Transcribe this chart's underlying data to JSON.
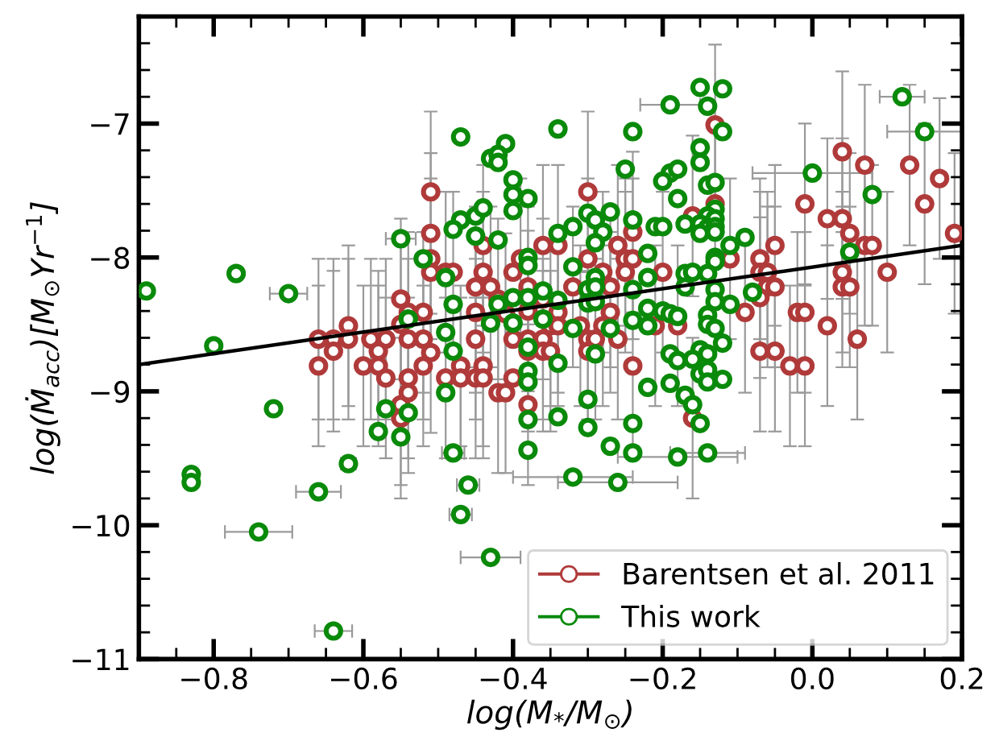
{
  "chart_data": {
    "type": "scatter",
    "xlabel": "log(M$_{*}$/M$_{⊙}$)",
    "ylabel": "log(Ṁ$_{acc}$)[M$_{⊙}$Yr$^{−1}$]",
    "xlim": [
      -0.9,
      0.2
    ],
    "ylim": [
      -11,
      -6.2
    ],
    "xticks": [
      {
        "value": -0.8,
        "label": "−0.8"
      },
      {
        "value": -0.6,
        "label": "−0.6"
      },
      {
        "value": -0.4,
        "label": "−0.4"
      },
      {
        "value": -0.2,
        "label": "−0.2"
      },
      {
        "value": 0.0,
        "label": "0.0"
      },
      {
        "value": 0.2,
        "label": "0.2"
      }
    ],
    "yticks": [
      {
        "value": -11,
        "label": "−11"
      },
      {
        "value": -10,
        "label": "−10"
      },
      {
        "value": -9,
        "label": "−9"
      },
      {
        "value": -8,
        "label": "−8"
      },
      {
        "value": -7,
        "label": "−7"
      }
    ],
    "legend": "bottom right",
    "series": [
      {
        "name": "Barentsen et al. 2011",
        "marker": "circle",
        "color": "#b03a3a",
        "x": [
          -0.55,
          -0.55,
          -0.62,
          -0.66,
          -0.64,
          -0.62,
          -0.59,
          -0.57,
          -0.64,
          -0.58,
          -0.66,
          -0.6,
          -0.58,
          -0.57,
          -0.55,
          -0.55,
          -0.51,
          -0.3,
          -0.51,
          -0.24,
          -0.44,
          -0.36,
          -0.34,
          -0.26,
          -0.51,
          -0.39,
          -0.3,
          -0.25,
          -0.24,
          -0.51,
          -0.49,
          -0.48,
          -0.44,
          -0.4,
          -0.25,
          -0.2,
          -0.28,
          -0.45,
          -0.43,
          -0.38,
          -0.32,
          -0.27,
          -0.45,
          -0.42,
          -0.36,
          -0.38,
          -0.41,
          -0.34,
          -0.27,
          -0.54,
          -0.52,
          -0.35,
          -0.34,
          -0.31,
          -0.28,
          -0.21,
          -0.18,
          -0.54,
          -0.52,
          -0.45,
          -0.4,
          -0.36,
          -0.3,
          -0.29,
          -0.26,
          -0.38,
          -0.51,
          -0.38,
          -0.36,
          -0.35,
          -0.3,
          -0.52,
          -0.47,
          -0.44,
          -0.45,
          -0.44,
          -0.47,
          -0.49,
          -0.54,
          -0.4,
          -0.24,
          -0.54,
          -0.42,
          -0.41,
          -0.38,
          -0.16,
          -0.13,
          0.04,
          0.07,
          0.13,
          0.17,
          -0.01,
          0.15,
          0.02,
          0.04,
          0.05,
          0.19,
          0.07,
          0.08,
          -0.05,
          -0.13,
          -0.11,
          -0.07,
          -0.07,
          -0.06,
          0.04,
          0.1,
          -0.06,
          -0.05,
          0.04,
          0.05,
          -0.07,
          -0.09,
          -0.02,
          -0.01,
          0.02,
          0.06,
          -0.07,
          -0.05,
          -0.03,
          -0.01,
          -0.16
        ],
        "values": [
          -8.31,
          -8.5,
          -8.51,
          -8.61,
          -8.61,
          -8.61,
          -8.61,
          -8.61,
          -8.7,
          -8.7,
          -8.81,
          -8.81,
          -8.81,
          -8.9,
          -9.1,
          -9.2,
          -7.51,
          -7.51,
          -7.82,
          -7.81,
          -7.91,
          -7.91,
          -7.91,
          -7.91,
          -8.01,
          -8.01,
          -8.01,
          -8.01,
          -8.01,
          -8.11,
          -8.11,
          -8.11,
          -8.11,
          -8.11,
          -8.11,
          -8.11,
          -8.11,
          -8.22,
          -8.22,
          -8.22,
          -8.22,
          -8.22,
          -8.41,
          -8.31,
          -8.31,
          -8.4,
          -8.42,
          -8.41,
          -8.41,
          -8.41,
          -8.41,
          -8.51,
          -8.51,
          -8.51,
          -8.51,
          -8.51,
          -8.51,
          -8.61,
          -8.61,
          -8.61,
          -8.61,
          -8.61,
          -8.61,
          -8.61,
          -8.61,
          -8.61,
          -8.71,
          -8.7,
          -8.7,
          -8.7,
          -8.7,
          -8.81,
          -8.81,
          -8.81,
          -8.9,
          -8.9,
          -8.9,
          -8.9,
          -8.9,
          -8.9,
          -8.81,
          -9.01,
          -9.01,
          -9.01,
          -9.1,
          -9.2,
          -7.01,
          -7.21,
          -7.31,
          -7.31,
          -7.41,
          -7.6,
          -7.6,
          -7.71,
          -7.71,
          -7.82,
          -7.82,
          -7.91,
          -7.91,
          -7.91,
          -7.6,
          -8.01,
          -8.01,
          -8.11,
          -8.11,
          -8.11,
          -8.11,
          -8.22,
          -8.22,
          -8.22,
          -8.22,
          -8.3,
          -8.41,
          -8.41,
          -8.41,
          -8.51,
          -8.61,
          -8.7,
          -8.7,
          -8.81,
          -8.81,
          -7.69
        ],
        "errors": [
          0.6,
          0.6,
          0.6,
          0.6,
          0.6,
          0.6,
          0.6,
          0.6,
          0.6,
          0.6,
          0.6,
          0.6,
          0.6,
          0.6,
          0.6,
          0.6,
          0.6,
          0.6,
          0.6,
          0.6,
          0.6,
          0.6,
          0.6,
          0.6,
          0.6,
          0.6,
          0.6,
          0.6,
          0.6,
          null,
          0.6,
          0.6,
          0.6,
          null,
          0.6,
          0.6,
          0.6,
          0.6,
          0.6,
          0.6,
          0.6,
          0.6,
          0.6,
          0.6,
          0.6,
          0.6,
          0.6,
          0.6,
          0.6,
          0.6,
          0.6,
          0.6,
          0.6,
          0.6,
          0.6,
          0.6,
          0.6,
          0.6,
          0.6,
          0.6,
          null,
          0.6,
          0.6,
          0.6,
          0.6,
          0.6,
          0.6,
          0.6,
          0.6,
          0.6,
          0.6,
          0.6,
          0.6,
          0.6,
          0.6,
          0.6,
          0.6,
          0.6,
          0.6,
          null,
          0.6,
          0.6,
          0.6,
          0.6,
          0.6,
          0.6,
          0.6,
          0.6,
          0.6,
          0.6,
          0.6,
          0.6,
          0.6,
          0.6,
          0.6,
          0.6,
          0.6,
          0.6,
          0.6,
          0.6,
          0.6,
          0.6,
          0.6,
          0.6,
          0.6,
          0.6,
          0.6,
          0.6,
          0.6,
          0.6,
          0.6,
          0.6,
          0.6,
          0.6,
          0.6,
          0.6,
          0.6,
          0.6,
          0.6,
          0.6,
          0.6,
          0.6
        ]
      },
      {
        "name": "This work",
        "marker": "circle",
        "color": "#0a8a0a",
        "x": [
          -0.89,
          -0.77,
          -0.7,
          -0.8,
          -0.55,
          -0.72,
          -0.57,
          -0.58,
          -0.55,
          -0.62,
          -0.83,
          -0.83,
          -0.66,
          -0.74,
          -0.64,
          -0.19,
          -0.34,
          -0.24,
          -0.47,
          -0.41,
          -0.43,
          -0.42,
          -0.42,
          -0.25,
          -0.19,
          -0.18,
          -0.2,
          -0.4,
          -0.18,
          -0.4,
          -0.38,
          -0.4,
          -0.47,
          -0.45,
          -0.44,
          -0.48,
          -0.3,
          -0.29,
          -0.27,
          -0.24,
          -0.32,
          -0.21,
          -0.2,
          -0.17,
          -0.45,
          -0.34,
          -0.28,
          -0.42,
          -0.29,
          -0.22,
          -0.52,
          -0.38,
          -0.38,
          -0.49,
          -0.32,
          -0.29,
          -0.3,
          -0.29,
          -0.22,
          -0.24,
          -0.17,
          -0.17,
          -0.36,
          -0.42,
          -0.4,
          -0.38,
          -0.3,
          -0.29,
          -0.34,
          -0.48,
          -0.54,
          -0.22,
          -0.2,
          -0.19,
          -0.18,
          -0.24,
          -0.22,
          -0.43,
          -0.4,
          -0.36,
          -0.49,
          -0.32,
          -0.27,
          -0.48,
          -0.38,
          -0.29,
          -0.34,
          -0.38,
          -0.38,
          -0.49,
          -0.19,
          -0.18,
          -0.19,
          -0.22,
          -0.3,
          -0.17,
          -0.16,
          -0.54,
          -0.38,
          -0.34,
          -0.3,
          -0.24,
          -0.38,
          -0.48,
          -0.27,
          -0.24,
          -0.18,
          -0.46,
          -0.32,
          -0.26,
          -0.47,
          -0.43,
          -0.15,
          -0.12,
          -0.14,
          -0.12,
          -0.15,
          -0.15,
          -0.14,
          -0.13,
          0.12,
          0.15,
          0.0,
          0.08,
          -0.13,
          -0.14,
          -0.13,
          -0.15,
          -0.14,
          -0.13,
          -0.15,
          -0.13,
          -0.09,
          -0.11,
          -0.13,
          -0.13,
          -0.16,
          -0.14,
          -0.13,
          -0.08,
          -0.13,
          -0.11,
          0.05,
          -0.14,
          -0.14,
          -0.13,
          -0.12,
          -0.15,
          -0.14,
          -0.16,
          -0.15,
          -0.14,
          -0.14,
          -0.12,
          -0.15,
          -0.14
        ],
        "values": [
          -8.25,
          -8.12,
          -8.27,
          -8.66,
          -7.86,
          -9.13,
          -9.13,
          -9.3,
          -9.34,
          -9.54,
          -9.62,
          -9.68,
          -9.75,
          -10.05,
          -10.79,
          -6.86,
          -7.04,
          -7.06,
          -7.1,
          -7.15,
          -7.26,
          -7.23,
          -7.29,
          -7.34,
          -7.37,
          -7.34,
          -7.43,
          -7.42,
          -7.56,
          -7.53,
          -7.56,
          -7.65,
          -7.72,
          -7.69,
          -7.63,
          -7.79,
          -7.67,
          -7.72,
          -7.66,
          -7.72,
          -7.77,
          -7.77,
          -7.77,
          -7.75,
          -7.84,
          -7.82,
          -7.81,
          -7.87,
          -7.89,
          -7.97,
          -8.01,
          -8.0,
          -8.06,
          -8.15,
          -8.07,
          -8.15,
          -8.24,
          -8.22,
          -8.15,
          -8.24,
          -8.12,
          -8.22,
          -8.25,
          -8.35,
          -8.3,
          -8.3,
          -8.34,
          -8.33,
          -8.32,
          -8.35,
          -8.46,
          -8.38,
          -8.4,
          -8.42,
          -8.44,
          -8.47,
          -8.51,
          -8.49,
          -8.49,
          -8.46,
          -8.56,
          -8.53,
          -8.53,
          -8.7,
          -8.67,
          -8.72,
          -8.79,
          -8.85,
          -8.93,
          -9.01,
          -8.72,
          -8.77,
          -8.94,
          -8.97,
          -9.06,
          -9.03,
          -9.1,
          -9.16,
          -9.21,
          -9.19,
          -9.27,
          -9.24,
          -9.44,
          -9.46,
          -9.41,
          -9.46,
          -9.49,
          -9.7,
          -9.64,
          -9.68,
          -9.92,
          -10.24,
          -6.73,
          -6.74,
          -6.87,
          -7.06,
          -7.18,
          -7.29,
          -7.46,
          -7.44,
          -6.8,
          -7.06,
          -7.37,
          -7.53,
          -7.64,
          -7.69,
          -7.71,
          -7.75,
          -7.78,
          -7.77,
          -7.82,
          -7.81,
          -7.85,
          -7.91,
          -8.0,
          -8.03,
          -8.11,
          -8.12,
          -8.24,
          -8.26,
          -8.33,
          -8.35,
          -7.96,
          -8.43,
          -8.5,
          -8.53,
          -8.64,
          -8.69,
          -8.72,
          -8.76,
          -8.87,
          -8.84,
          -8.93,
          -8.91,
          -9.24,
          -9.46
        ],
        "xerrors": [
          null,
          null,
          0.025,
          null,
          0.02,
          null,
          null,
          null,
          null,
          0.01,
          null,
          null,
          0.03,
          0.045,
          0.025,
          0.04,
          null,
          null,
          null,
          null,
          null,
          null,
          null,
          null,
          null,
          null,
          null,
          null,
          null,
          null,
          null,
          null,
          null,
          null,
          null,
          null,
          null,
          null,
          null,
          null,
          null,
          null,
          null,
          null,
          null,
          null,
          null,
          null,
          null,
          null,
          null,
          null,
          null,
          null,
          null,
          null,
          null,
          null,
          null,
          null,
          null,
          null,
          null,
          null,
          null,
          null,
          null,
          null,
          null,
          null,
          null,
          null,
          null,
          null,
          null,
          null,
          null,
          null,
          null,
          null,
          null,
          null,
          null,
          null,
          null,
          null,
          null,
          null,
          null,
          null,
          null,
          null,
          null,
          null,
          null,
          null,
          null,
          null,
          null,
          null,
          null,
          null,
          null,
          0.015,
          null,
          null,
          0.08,
          0.015,
          0.08,
          0.08,
          0.015,
          0.04,
          null,
          null,
          null,
          null,
          null,
          null,
          null,
          null,
          0.03,
          0.05,
          0.08,
          null,
          null,
          null,
          null,
          null,
          null,
          null,
          null,
          null,
          null,
          null,
          null,
          null,
          null,
          null,
          null,
          null,
          null,
          null,
          null,
          null,
          null,
          null,
          null,
          null,
          null,
          null,
          null,
          null,
          null,
          null,
          null,
          0.05
        ]
      },
      {
        "type": "line",
        "color": "#000000",
        "x": [
          -0.9,
          0.2
        ],
        "values": [
          -8.8,
          -7.91
        ]
      }
    ]
  }
}
